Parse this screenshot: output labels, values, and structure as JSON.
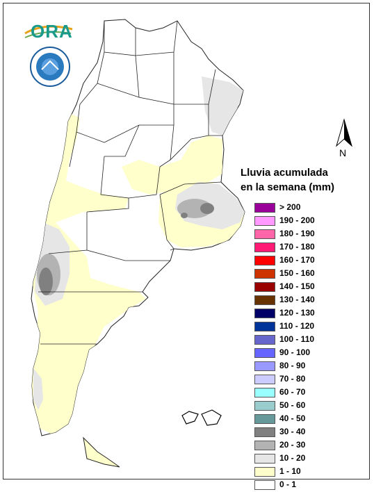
{
  "logo": {
    "ora_text": "ORA",
    "ora_icon": "sun-arc-icon",
    "smn_icon": "smn-seal-icon"
  },
  "north_arrow": {
    "label": "N",
    "icon": "north-arrow-icon"
  },
  "legend": {
    "title_line1": "Lluvia acumulada",
    "title_line2": "en la semana (mm)",
    "items": [
      {
        "label": "> 200",
        "color": "#990099"
      },
      {
        "label": "190 - 200",
        "color": "#ff99ff"
      },
      {
        "label": "180 - 190",
        "color": "#ff66aa"
      },
      {
        "label": "170 - 180",
        "color": "#ff1a75"
      },
      {
        "label": "160 - 170",
        "color": "#ff0000"
      },
      {
        "label": "150 - 160",
        "color": "#cc3300"
      },
      {
        "label": "140 - 150",
        "color": "#990000"
      },
      {
        "label": "130 - 140",
        "color": "#663300"
      },
      {
        "label": "120 - 130",
        "color": "#000066"
      },
      {
        "label": "110 - 120",
        "color": "#003399"
      },
      {
        "label": "100 - 110",
        "color": "#6666cc"
      },
      {
        "label": "90 - 100",
        "color": "#6666ff"
      },
      {
        "label": "80 - 90",
        "color": "#9999ff"
      },
      {
        "label": "70 - 80",
        "color": "#ccccff"
      },
      {
        "label": "60 - 70",
        "color": "#99ffff"
      },
      {
        "label": "50 - 60",
        "color": "#99cccc"
      },
      {
        "label": "40 - 50",
        "color": "#669999"
      },
      {
        "label": "30 - 40",
        "color": "#808080"
      },
      {
        "label": "20 - 30",
        "color": "#b3b3b3"
      },
      {
        "label": "10 - 20",
        "color": "#e6e6e6"
      },
      {
        "label": "1 - 10",
        "color": "#ffffcc"
      },
      {
        "label": "0 - 1",
        "color": "#ffffff"
      }
    ]
  },
  "map_colors": {
    "zone_1_10": "#ffffcc",
    "zone_10_20": "#e6e6e6",
    "zone_20_30": "#b3b3b3",
    "zone_30_40": "#808080",
    "border": "#222222"
  }
}
